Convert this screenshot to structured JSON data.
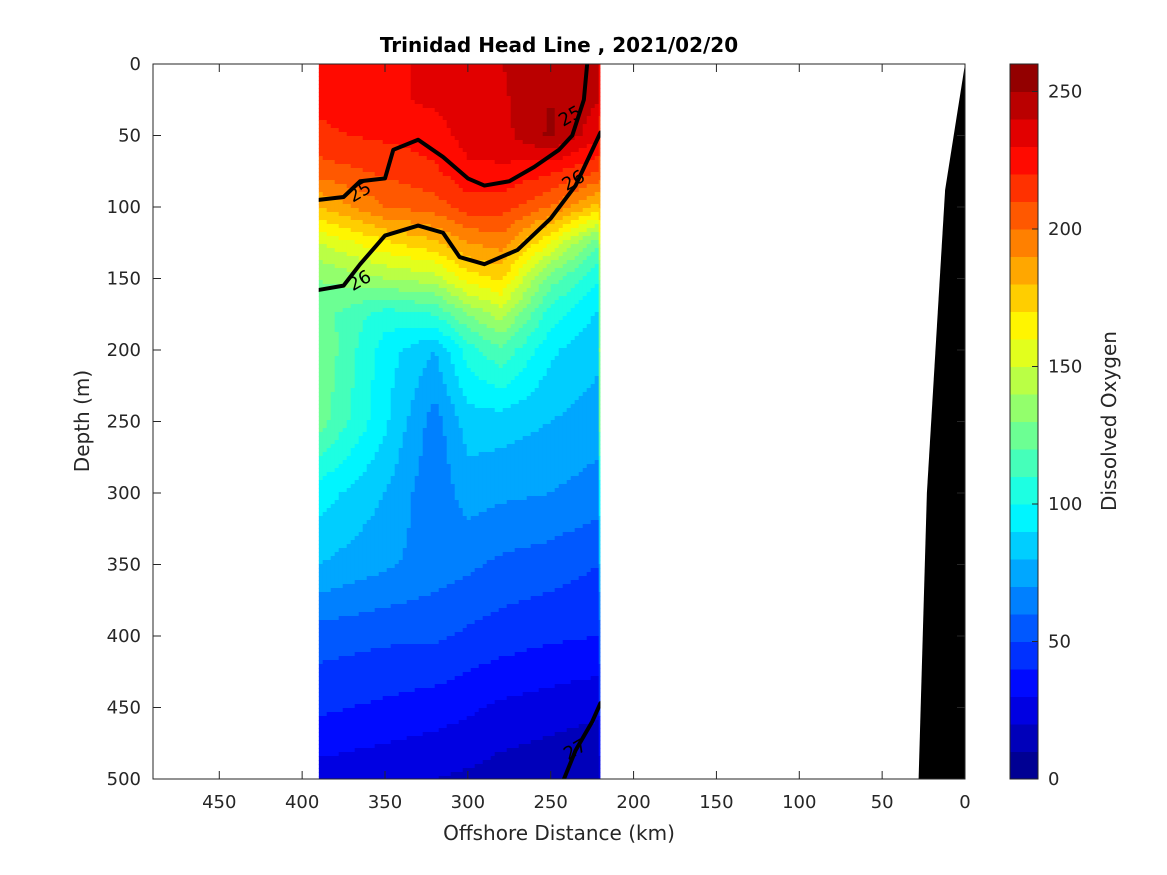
{
  "chart_data": {
    "type": "heatmap",
    "title": "Trinidad Head Line , 2021/02/20",
    "xlabel": "Offshore Distance (km)",
    "ylabel": "Depth (m)",
    "colorbar_label": "Dissolved Oxygen",
    "xlim": [
      490,
      0
    ],
    "ylim": [
      0,
      500
    ],
    "x_reversed": true,
    "y_reversed": true,
    "x_ticks": [
      450,
      400,
      350,
      300,
      250,
      200,
      150,
      100,
      50,
      0
    ],
    "y_ticks": [
      0,
      50,
      100,
      150,
      200,
      250,
      300,
      350,
      400,
      450,
      500
    ],
    "colorbar": {
      "range": [
        0,
        260
      ],
      "levels": 26,
      "ticks": [
        0,
        50,
        100,
        150,
        200,
        250
      ],
      "placement": "right"
    },
    "section_extent_km": [
      390,
      220
    ],
    "oxygen_grid": {
      "x": [
        390,
        350,
        320,
        300,
        280,
        250,
        220
      ],
      "depth": [
        0,
        25,
        50,
        75,
        100,
        125,
        150,
        175,
        200,
        250,
        300,
        350,
        400,
        450,
        500
      ],
      "values": [
        [
          225,
          228,
          232,
          238,
          240,
          245,
          240
        ],
        [
          222,
          228,
          232,
          236,
          238,
          250,
          240
        ],
        [
          218,
          222,
          225,
          234,
          236,
          252,
          232
        ],
        [
          205,
          212,
          218,
          228,
          228,
          222,
          210
        ],
        [
          180,
          200,
          205,
          215,
          215,
          200,
          175
        ],
        [
          150,
          168,
          178,
          190,
          195,
          160,
          120
        ],
        [
          130,
          140,
          145,
          165,
          172,
          125,
          100
        ],
        [
          125,
          105,
          110,
          130,
          145,
          105,
          88
        ],
        [
          130,
          95,
          80,
          105,
          118,
          92,
          82
        ],
        [
          125,
          92,
          65,
          85,
          85,
          80,
          75
        ],
        [
          95,
          80,
          62,
          75,
          72,
          70,
          65
        ],
        [
          80,
          72,
          65,
          62,
          58,
          55,
          50
        ],
        [
          55,
          52,
          52,
          48,
          45,
          42,
          40
        ],
        [
          42,
          38,
          35,
          32,
          28,
          25,
          22
        ],
        [
          25,
          22,
          20,
          18,
          15,
          12,
          10
        ]
      ]
    },
    "density_contours": [
      {
        "label": "25",
        "points": [
          [
            390,
            95
          ],
          [
            375,
            93
          ],
          [
            365,
            82
          ],
          [
            350,
            80
          ],
          [
            345,
            60
          ],
          [
            330,
            53
          ],
          [
            315,
            65
          ],
          [
            300,
            80
          ],
          [
            290,
            85
          ],
          [
            275,
            82
          ],
          [
            260,
            72
          ],
          [
            245,
            60
          ],
          [
            237,
            50
          ],
          [
            230,
            25
          ],
          [
            228,
            0
          ]
        ]
      },
      {
        "label": "26",
        "points": [
          [
            390,
            158
          ],
          [
            375,
            155
          ],
          [
            365,
            140
          ],
          [
            350,
            120
          ],
          [
            330,
            113
          ],
          [
            315,
            118
          ],
          [
            305,
            135
          ],
          [
            290,
            140
          ],
          [
            270,
            130
          ],
          [
            250,
            108
          ],
          [
            235,
            85
          ],
          [
            220,
            48
          ]
        ]
      },
      {
        "label": "27",
        "points": [
          [
            242,
            500
          ],
          [
            235,
            480
          ],
          [
            225,
            460
          ],
          [
            220,
            447
          ]
        ]
      }
    ],
    "contour_labels": [
      {
        "text": "25",
        "x": 365,
        "y": 90
      },
      {
        "text": "25",
        "x": 238,
        "y": 37
      },
      {
        "text": "26",
        "x": 365,
        "y": 152
      },
      {
        "text": "26",
        "x": 236,
        "y": 82
      },
      {
        "text": "27",
        "x": 235,
        "y": 480
      }
    ],
    "bathymetry": [
      [
        28,
        500
      ],
      [
        23,
        300
      ],
      [
        12,
        88
      ],
      [
        0,
        0
      ]
    ]
  }
}
